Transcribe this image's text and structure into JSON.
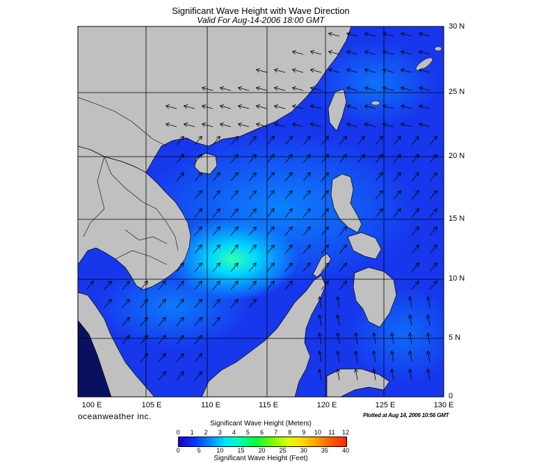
{
  "title": "Significant Wave Height with Wave Direction",
  "subtitle": "Valid For Aug-14-2006 18:00 GMT",
  "lat_labels": [
    "30 N",
    "25 N",
    "20 N",
    "15 N",
    "10 N",
    "5 N",
    "0"
  ],
  "lon_labels": [
    "100 E",
    "105 E",
    "110 E",
    "115 E",
    "120 E",
    "125 E",
    "130 E"
  ],
  "brand": "oceanweather inc.",
  "plotted": "Plotted at Aug 14, 2006 10:56 GMT",
  "colorbar": {
    "meters_title": "Significant Wave Height (Meters)",
    "meters_ticks": [
      "0",
      "1",
      "2",
      "3",
      "4",
      "5",
      "6",
      "7",
      "8",
      "9",
      "10",
      "11",
      "12"
    ],
    "feet_title": "Significant Wave Height (Feet)",
    "feet_ticks": [
      "0",
      "5",
      "10",
      "15",
      "20",
      "25",
      "30",
      "35",
      "40"
    ]
  },
  "colors": {
    "land": "#c0c0c0",
    "sea_low": "#1e28e6",
    "sea_mid": "#0a78ff",
    "sea_high": "#00e6ff",
    "grid": "#000000"
  }
}
